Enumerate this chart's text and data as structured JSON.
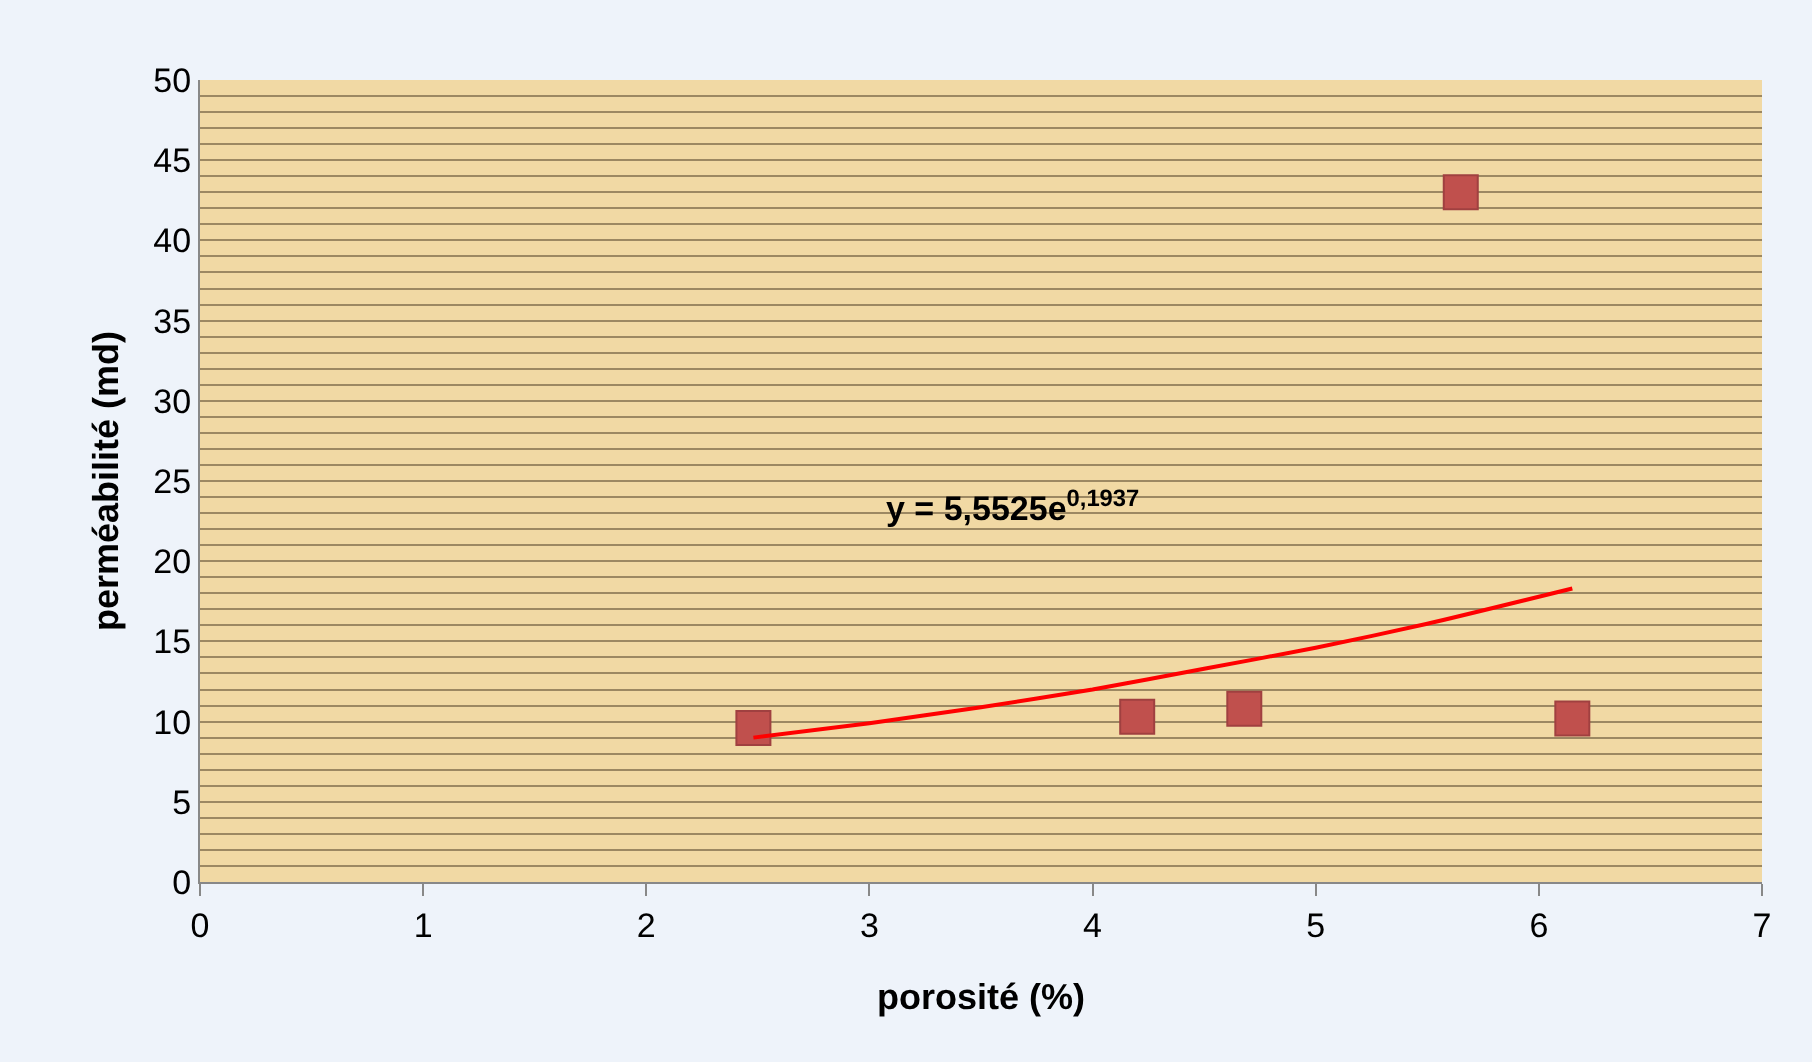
{
  "chart_data": {
    "type": "scatter",
    "xlabel": "porosité (%)",
    "ylabel": "perméabilité (md)",
    "xlim": [
      0,
      7
    ],
    "xticks": [
      0,
      1,
      2,
      3,
      4,
      5,
      6,
      7
    ],
    "ylim": [
      0,
      50
    ],
    "yticks": [
      0,
      {
        "value": 1,
        "label": null
      },
      {
        "value": 2,
        "label": null
      },
      {
        "value": 3,
        "label": null
      },
      {
        "value": 4,
        "label": null
      },
      5,
      {
        "value": 6,
        "label": null
      },
      {
        "value": 7,
        "label": null
      },
      {
        "value": 8,
        "label": null
      },
      {
        "value": 9,
        "label": null
      },
      10,
      {
        "value": 11,
        "label": null
      },
      {
        "value": 12,
        "label": null
      },
      {
        "value": 13,
        "label": null
      },
      {
        "value": 14,
        "label": null
      },
      15,
      {
        "value": 16,
        "label": null
      },
      {
        "value": 17,
        "label": null
      },
      {
        "value": 18,
        "label": null
      },
      {
        "value": 19,
        "label": null
      },
      20,
      {
        "value": 21,
        "label": null
      },
      {
        "value": 22,
        "label": null
      },
      {
        "value": 23,
        "label": null
      },
      {
        "value": 24,
        "label": null
      },
      25,
      {
        "value": 26,
        "label": null
      },
      {
        "value": 27,
        "label": null
      },
      {
        "value": 28,
        "label": null
      },
      {
        "value": 29,
        "label": null
      },
      30,
      {
        "value": 31,
        "label": null
      },
      {
        "value": 32,
        "label": null
      },
      {
        "value": 33,
        "label": null
      },
      {
        "value": 34,
        "label": null
      },
      35,
      {
        "value": 36,
        "label": null
      },
      {
        "value": 37,
        "label": null
      },
      {
        "value": 38,
        "label": null
      },
      {
        "value": 39,
        "label": null
      },
      40,
      {
        "value": 41,
        "label": null
      },
      {
        "value": 42,
        "label": null
      },
      {
        "value": 43,
        "label": null
      },
      {
        "value": 44,
        "label": null
      },
      45,
      {
        "value": 46,
        "label": null
      },
      {
        "value": 47,
        "label": null
      },
      {
        "value": 48,
        "label": null
      },
      {
        "value": 49,
        "label": null
      },
      50
    ],
    "grid": "y",
    "series": [
      {
        "color": "#c0504d",
        "marker": "square",
        "x": [
          2.48,
          4.2,
          4.68,
          5.65,
          6.15
        ],
        "values": [
          9.6,
          10.3,
          10.8,
          43,
          10.2
        ]
      },
      {
        "type": "line",
        "marker": "none",
        "color": "#ff0000",
        "x": [
          2.48,
          3,
          3.5,
          4,
          4.5,
          5,
          5.5,
          6.15
        ],
        "values": [
          9,
          9.9,
          10.9,
          12,
          13.3,
          14.6,
          16.1,
          18.3
        ]
      }
    ],
    "annotations": [
      "y = 5,5525e$^{0,1937}$"
    ]
  }
}
